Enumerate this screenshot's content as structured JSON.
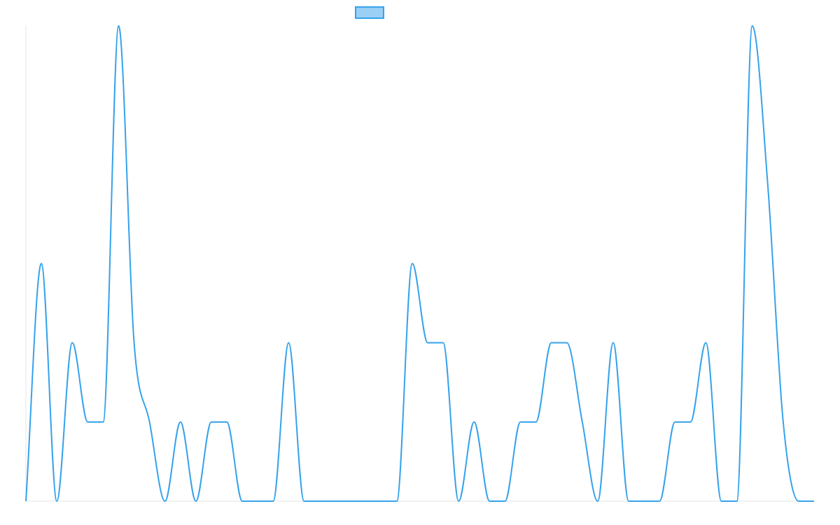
{
  "chart_data": {
    "type": "line",
    "title": "",
    "xlabel": "",
    "ylabel": "",
    "ylim": [
      0,
      6
    ],
    "grid": false,
    "legend": {
      "position": "top-center",
      "entries": [
        {
          "name": ""
        }
      ]
    },
    "series": [
      {
        "name": "",
        "color": "#36a2eb",
        "fill": "rgba(54,162,235,0.5)",
        "values": [
          0,
          3,
          0,
          2,
          1,
          1,
          6,
          2,
          1,
          0,
          1,
          0,
          1,
          1,
          0,
          0,
          0,
          2,
          0,
          0,
          0,
          0,
          0,
          0,
          0,
          3,
          2,
          2,
          0,
          1,
          0,
          0,
          1,
          1,
          2,
          2,
          1,
          0,
          2,
          0,
          0,
          0,
          1,
          1,
          2,
          0,
          0,
          6,
          4,
          1,
          0,
          0
        ]
      }
    ]
  }
}
